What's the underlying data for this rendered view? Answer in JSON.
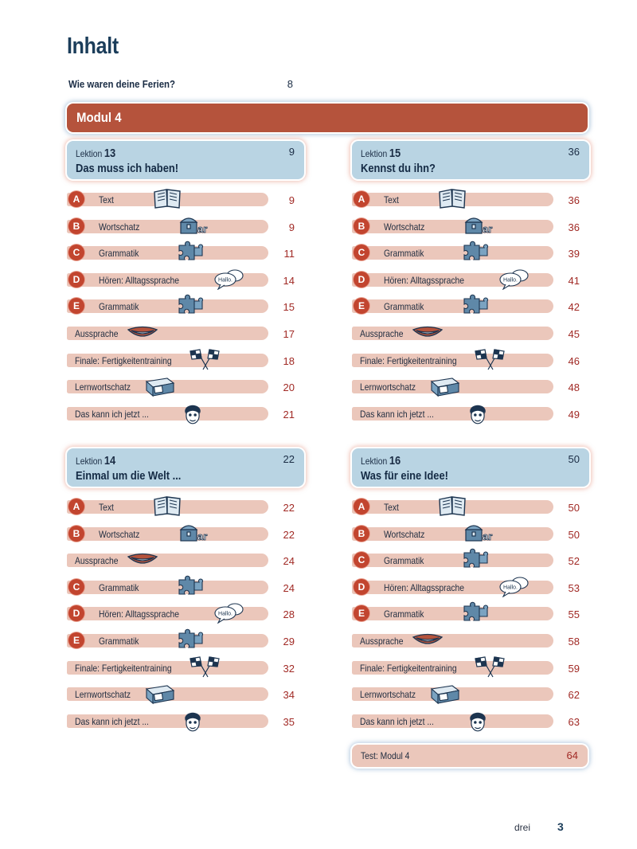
{
  "title": "Inhalt",
  "intro": {
    "text": "Wie waren deine Ferien?",
    "page": "8"
  },
  "modul": "Modul 4",
  "lessons": [
    {
      "label": "Lektion",
      "num": "13",
      "title": "Das muss ich haben!",
      "page": "9",
      "rows": [
        {
          "letter": "A",
          "text": "Text",
          "page": "9",
          "icon": "book-icon"
        },
        {
          "letter": "B",
          "text": "Wortschatz",
          "page": "9",
          "icon": "treasure-chest-icon"
        },
        {
          "letter": "C",
          "text": "Grammatik",
          "page": "11",
          "icon": "puzzle-icon"
        },
        {
          "letter": "D",
          "text": "Hören: Alltagssprache",
          "page": "14",
          "icon": "speech-bubbles-icon"
        },
        {
          "letter": "E",
          "text": "Grammatik",
          "page": "15",
          "icon": "puzzle-icon"
        },
        {
          "letter": "",
          "text": "Aussprache",
          "page": "17",
          "icon": "mouth-icon"
        },
        {
          "letter": "",
          "text": "Finale: Fertigkeitentraining",
          "page": "18",
          "icon": "checkered-flags-icon"
        },
        {
          "letter": "",
          "text": "Lernwortschatz",
          "page": "20",
          "icon": "card-box-icon"
        },
        {
          "letter": "",
          "text": "Das kann ich jetzt ...",
          "page": "21",
          "icon": "face-icon"
        }
      ]
    },
    {
      "label": "Lektion",
      "num": "15",
      "title": "Kennst du ihn?",
      "page": "36",
      "rows": [
        {
          "letter": "A",
          "text": "Text",
          "page": "36",
          "icon": "book-icon"
        },
        {
          "letter": "B",
          "text": "Wortschatz",
          "page": "36",
          "icon": "treasure-chest-icon"
        },
        {
          "letter": "C",
          "text": "Grammatik",
          "page": "39",
          "icon": "puzzle-icon"
        },
        {
          "letter": "D",
          "text": "Hören: Alltagssprache",
          "page": "41",
          "icon": "speech-bubbles-icon"
        },
        {
          "letter": "E",
          "text": "Grammatik",
          "page": "42",
          "icon": "puzzle-icon"
        },
        {
          "letter": "",
          "text": "Aussprache",
          "page": "45",
          "icon": "mouth-icon"
        },
        {
          "letter": "",
          "text": "Finale: Fertigkeitentraining",
          "page": "46",
          "icon": "checkered-flags-icon"
        },
        {
          "letter": "",
          "text": "Lernwortschatz",
          "page": "48",
          "icon": "card-box-icon"
        },
        {
          "letter": "",
          "text": "Das kann ich jetzt ...",
          "page": "49",
          "icon": "face-icon"
        }
      ]
    },
    {
      "label": "Lektion",
      "num": "14",
      "title": "Einmal um die Welt ...",
      "page": "22",
      "rows": [
        {
          "letter": "A",
          "text": "Text",
          "page": "22",
          "icon": "book-icon"
        },
        {
          "letter": "B",
          "text": "Wortschatz",
          "page": "22",
          "icon": "treasure-chest-icon"
        },
        {
          "letter": "",
          "text": "Aussprache",
          "page": "24",
          "icon": "mouth-icon"
        },
        {
          "letter": "C",
          "text": "Grammatik",
          "page": "24",
          "icon": "puzzle-icon"
        },
        {
          "letter": "D",
          "text": "Hören: Alltagssprache",
          "page": "28",
          "icon": "speech-bubbles-icon"
        },
        {
          "letter": "E",
          "text": "Grammatik",
          "page": "29",
          "icon": "puzzle-icon"
        },
        {
          "letter": "",
          "text": "Finale: Fertigkeitentraining",
          "page": "32",
          "icon": "checkered-flags-icon"
        },
        {
          "letter": "",
          "text": "Lernwortschatz",
          "page": "34",
          "icon": "card-box-icon"
        },
        {
          "letter": "",
          "text": "Das kann ich jetzt ...",
          "page": "35",
          "icon": "face-icon"
        }
      ]
    },
    {
      "label": "Lektion",
      "num": "16",
      "title": "Was für eine Idee!",
      "page": "50",
      "rows": [
        {
          "letter": "A",
          "text": "Text",
          "page": "50",
          "icon": "book-icon"
        },
        {
          "letter": "B",
          "text": "Wortschatz",
          "page": "50",
          "icon": "treasure-chest-icon"
        },
        {
          "letter": "C",
          "text": "Grammatik",
          "page": "52",
          "icon": "puzzle-icon"
        },
        {
          "letter": "D",
          "text": "Hören: Alltagssprache",
          "page": "53",
          "icon": "speech-bubbles-icon"
        },
        {
          "letter": "E",
          "text": "Grammatik",
          "page": "55",
          "icon": "puzzle-icon"
        },
        {
          "letter": "",
          "text": "Aussprache",
          "page": "58",
          "icon": "mouth-icon"
        },
        {
          "letter": "",
          "text": "Finale: Fertigkeitentraining",
          "page": "59",
          "icon": "checkered-flags-icon"
        },
        {
          "letter": "",
          "text": "Lernwortschatz",
          "page": "62",
          "icon": "card-box-icon"
        },
        {
          "letter": "",
          "text": "Das kann ich jetzt ...",
          "page": "63",
          "icon": "face-icon"
        }
      ]
    }
  ],
  "test": {
    "text": "Test: Modul 4",
    "page": "64"
  },
  "bubble_text": "Hallo.",
  "footer": {
    "word": "drei",
    "page": "3"
  },
  "colors": {
    "modul": "#b5533c",
    "lesson": "#b9d4e3",
    "row": "#ebc7bb",
    "letter": "#c2452f",
    "page_num": "#a12a25"
  }
}
